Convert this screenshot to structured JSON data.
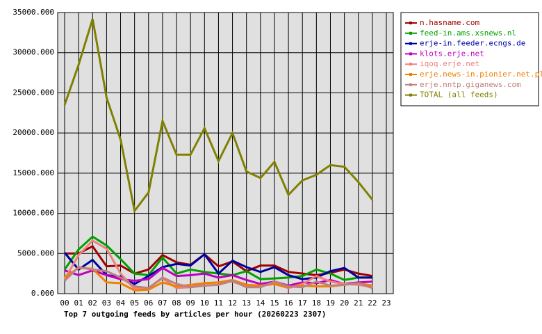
{
  "chart_data": {
    "type": "line",
    "title": "Top 7 outgoing feeds by articles per hour (20260223 2307)",
    "categories": [
      "00",
      "01",
      "02",
      "03",
      "04",
      "05",
      "06",
      "07",
      "08",
      "09",
      "10",
      "11",
      "12",
      "13",
      "14",
      "15",
      "16",
      "17",
      "18",
      "19",
      "20",
      "21",
      "22",
      "23"
    ],
    "ylim": [
      0,
      35000
    ],
    "yticks": [
      {
        "value": 0,
        "label": "0.000"
      },
      {
        "value": 5000,
        "label": "5000.000"
      },
      {
        "value": 10000,
        "label": "10000.000"
      },
      {
        "value": 15000,
        "label": "15000.000"
      },
      {
        "value": 20000,
        "label": "20000.000"
      },
      {
        "value": 25000,
        "label": "25000.000"
      },
      {
        "value": 30000,
        "label": "30000.000"
      },
      {
        "value": 35000,
        "label": "35000.000"
      }
    ],
    "grid": true,
    "legend": "right",
    "series": [
      {
        "name": "n.hasname.com",
        "color": "#a00000",
        "values": [
          5000,
          5000,
          5900,
          3400,
          3500,
          2500,
          3000,
          4800,
          3900,
          3600,
          4900,
          3400,
          4000,
          2800,
          3500,
          3500,
          2700,
          2500,
          2300,
          2600,
          3000,
          2500,
          2200,
          null
        ]
      },
      {
        "name": "feed-in.ams.xsnews.nl",
        "color": "#00a000",
        "values": [
          3000,
          5500,
          7100,
          6000,
          4300,
          2500,
          2300,
          4500,
          2500,
          3000,
          2700,
          2500,
          2300,
          2800,
          1800,
          1900,
          2000,
          2200,
          3000,
          2500,
          1700,
          2000,
          2000,
          null
        ]
      },
      {
        "name": "erje-in.feeder.ecngs.de",
        "color": "#0000a0",
        "values": [
          5100,
          3000,
          4200,
          2300,
          2100,
          1200,
          2200,
          3300,
          3700,
          3500,
          4900,
          2500,
          4100,
          3300,
          2700,
          3300,
          2300,
          1800,
          2000,
          2800,
          3200,
          2000,
          2000,
          null
        ]
      },
      {
        "name": "klots.erje.net",
        "color": "#c000c0",
        "values": [
          2900,
          2300,
          2900,
          2300,
          1800,
          1600,
          1800,
          3200,
          2200,
          2300,
          2500,
          2000,
          2300,
          1700,
          1200,
          1500,
          1000,
          1400,
          1300,
          1700,
          1200,
          1400,
          1500,
          null
        ]
      },
      {
        "name": "iqoq.erje.net",
        "color": "#f08080",
        "values": [
          1800,
          4800,
          6600,
          5600,
          2500,
          600,
          700,
          1900,
          700,
          800,
          1300,
          1400,
          1500,
          900,
          1000,
          1200,
          700,
          1200,
          2200,
          1500,
          1200,
          1100,
          800,
          null
        ]
      },
      {
        "name": "erje.news-in.pionier.net.pl",
        "color": "#f08000",
        "values": [
          2000,
          3200,
          3100,
          1400,
          1300,
          400,
          500,
          1400,
          900,
          1100,
          1300,
          1400,
          1700,
          1100,
          1000,
          1200,
          800,
          1000,
          900,
          900,
          1100,
          1300,
          1000,
          null
        ]
      },
      {
        "name": "erje.nntp.giganews.com",
        "color": "#c08080",
        "values": [
          1600,
          3300,
          3000,
          2800,
          2000,
          900,
          700,
          2000,
          1200,
          800,
          1000,
          1100,
          1600,
          800,
          800,
          1500,
          900,
          800,
          1500,
          1000,
          1100,
          1300,
          700,
          null
        ]
      },
      {
        "name": "TOTAL (all feeds)",
        "color": "#808000",
        "values": [
          23500,
          28500,
          34200,
          24400,
          19200,
          10300,
          12600,
          21500,
          17300,
          17300,
          20600,
          16500,
          20000,
          15200,
          14400,
          16400,
          12300,
          14100,
          14800,
          16000,
          15800,
          13900,
          11700,
          null
        ]
      }
    ]
  }
}
